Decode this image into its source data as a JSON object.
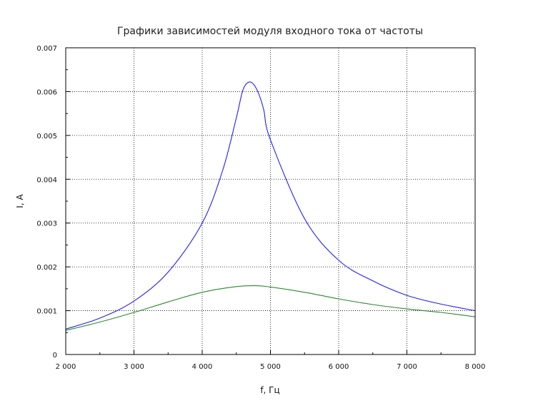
{
  "chart_data": {
    "type": "line",
    "title": "Графики зависимостей модуля входного тока от частоты",
    "xlabel": "f, Гц",
    "ylabel": "I, A",
    "xlim": [
      2000,
      8000
    ],
    "ylim": [
      0,
      0.007
    ],
    "x_ticks": [
      2000,
      3000,
      4000,
      5000,
      6000,
      7000,
      8000
    ],
    "x_tick_labels": [
      "2 000",
      "3 000",
      "4 000",
      "5 000",
      "6 000",
      "7 000",
      "8 000"
    ],
    "y_ticks": [
      0,
      0.001,
      0.002,
      0.003,
      0.004,
      0.005,
      0.006,
      0.007
    ],
    "y_tick_labels": [
      "0",
      "0.001",
      "0.002",
      "0.003",
      "0.004",
      "0.005",
      "0.006",
      "0.007"
    ],
    "grid": true,
    "series": [
      {
        "color": "#1f1fff",
        "x": [
          2000,
          2500,
          3000,
          3500,
          4000,
          4300,
          4500,
          4600,
          4700,
          4800,
          4900,
          5000,
          5500,
          6000,
          6500,
          7000,
          7500,
          8000
        ],
        "y": [
          0.00058,
          0.00083,
          0.00122,
          0.00188,
          0.003,
          0.0042,
          0.0054,
          0.00605,
          0.00622,
          0.00605,
          0.0056,
          0.0049,
          0.0031,
          0.00215,
          0.00168,
          0.00135,
          0.00115,
          0.001
        ]
      },
      {
        "color": "#2a8a2a",
        "x": [
          2000,
          2500,
          3000,
          3500,
          4000,
          4500,
          4800,
          5000,
          5500,
          6000,
          6500,
          7000,
          7500,
          8000
        ],
        "y": [
          0.00055,
          0.00074,
          0.00096,
          0.0012,
          0.00142,
          0.00155,
          0.00157,
          0.00154,
          0.00142,
          0.00127,
          0.00114,
          0.00104,
          0.00096,
          0.00086
        ]
      }
    ]
  }
}
